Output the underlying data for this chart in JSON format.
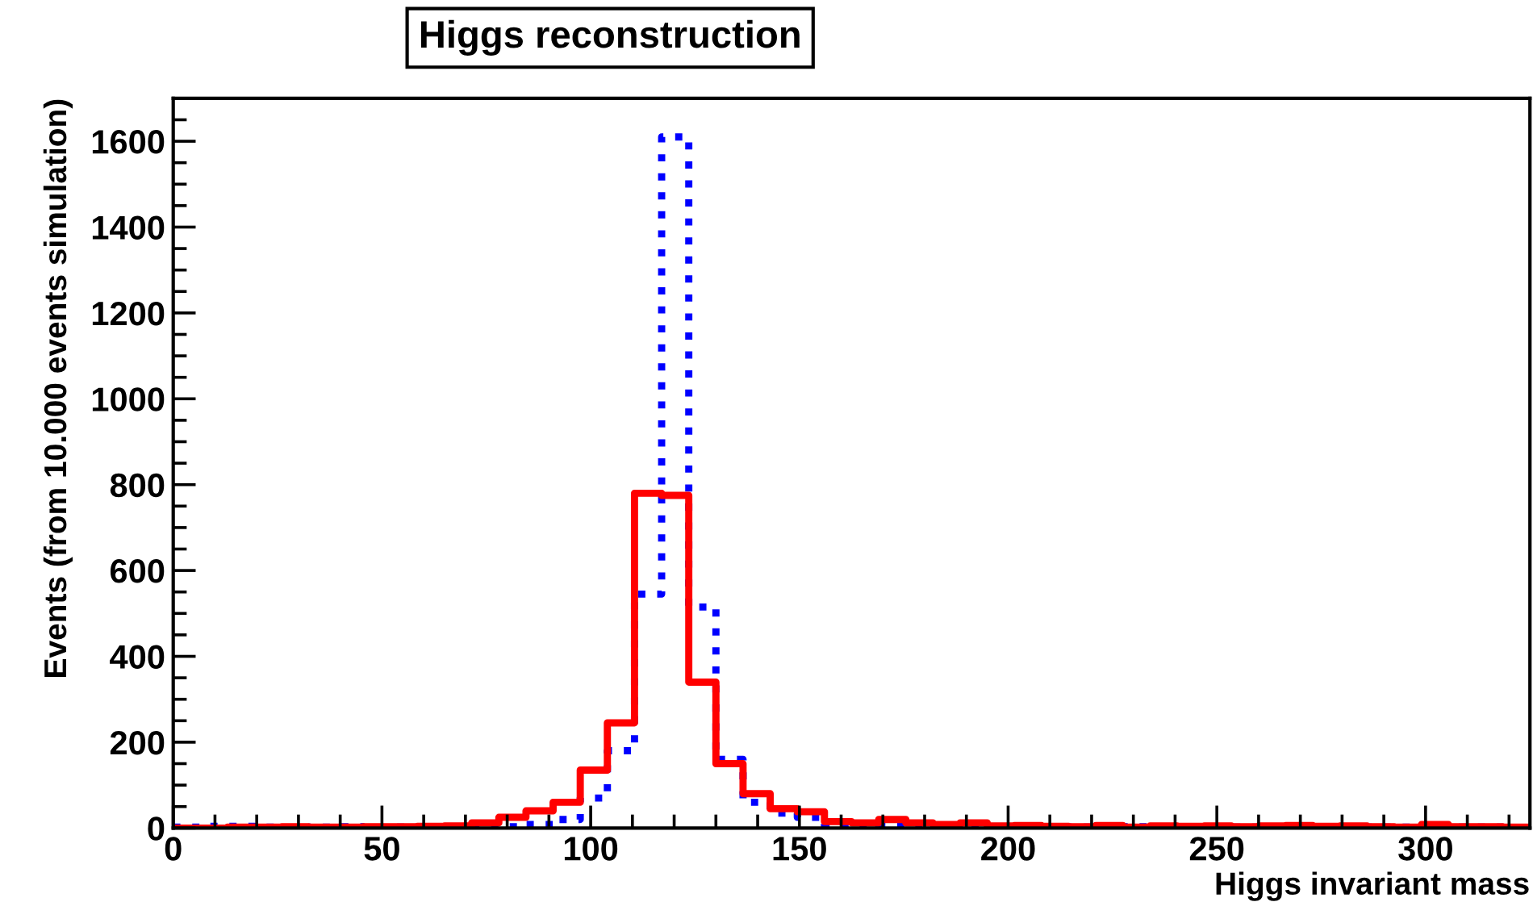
{
  "chart_data": {
    "type": "histogram",
    "title": "Higgs reconstruction",
    "xlabel": "Higgs invariant mass",
    "ylabel": "Events (from 10.000 events simulation)",
    "bins": [
      0,
      6.5,
      13,
      19.5,
      26,
      32.5,
      39,
      45.5,
      52,
      58.5,
      65,
      71.5,
      78,
      84.5,
      91,
      97.5,
      104,
      110.5,
      117,
      123.5,
      130,
      136.5,
      143,
      149.5,
      156,
      162.5,
      169,
      175.5,
      182,
      188.5,
      195,
      201.5,
      208,
      214.5,
      221,
      227.5,
      234,
      240.5,
      247,
      253.5,
      260,
      266.5,
      273,
      279.5,
      286,
      292.5,
      299,
      305.5,
      312,
      318.5,
      325
    ],
    "series": [
      {
        "color": "#0000ff",
        "line_style": "dotted",
        "values": [
          2,
          4,
          4,
          2,
          1,
          2,
          3,
          1,
          2,
          2,
          3,
          2,
          3,
          8,
          20,
          70,
          180,
          545,
          1610,
          515,
          160,
          60,
          35,
          25,
          5,
          3,
          4,
          2,
          3,
          4,
          3,
          2,
          3,
          2,
          1,
          3,
          2,
          2,
          1,
          2,
          3,
          2,
          2,
          1,
          2,
          2,
          3,
          2,
          2,
          1
        ]
      },
      {
        "color": "#ff0000",
        "line_style": "solid",
        "values": [
          0,
          0,
          2,
          2,
          3,
          2,
          2,
          3,
          3,
          4,
          5,
          12,
          25,
          40,
          60,
          135,
          245,
          780,
          775,
          340,
          150,
          80,
          45,
          38,
          15,
          12,
          20,
          12,
          8,
          12,
          5,
          6,
          4,
          3,
          6,
          2,
          5,
          4,
          5,
          3,
          5,
          6,
          4,
          5,
          3,
          2,
          8,
          3,
          3,
          2
        ]
      }
    ],
    "xlim": [
      0,
      325
    ],
    "ylim": [
      0,
      1700
    ],
    "xticks": [
      0,
      {
        "value": 10,
        "label": null
      },
      {
        "value": 20,
        "label": null
      },
      {
        "value": 30,
        "label": null
      },
      {
        "value": 40,
        "label": null
      },
      50,
      {
        "value": 60,
        "label": null
      },
      {
        "value": 70,
        "label": null
      },
      {
        "value": 80,
        "label": null
      },
      {
        "value": 90,
        "label": null
      },
      100,
      {
        "value": 110,
        "label": null
      },
      {
        "value": 120,
        "label": null
      },
      {
        "value": 130,
        "label": null
      },
      {
        "value": 140,
        "label": null
      },
      150,
      {
        "value": 160,
        "label": null
      },
      {
        "value": 170,
        "label": null
      },
      {
        "value": 180,
        "label": null
      },
      {
        "value": 190,
        "label": null
      },
      200,
      {
        "value": 210,
        "label": null
      },
      {
        "value": 220,
        "label": null
      },
      {
        "value": 230,
        "label": null
      },
      {
        "value": 240,
        "label": null
      },
      250,
      {
        "value": 260,
        "label": null
      },
      {
        "value": 270,
        "label": null
      },
      {
        "value": 280,
        "label": null
      },
      {
        "value": 290,
        "label": null
      },
      300,
      {
        "value": 310,
        "label": null
      },
      {
        "value": 320,
        "label": null
      }
    ],
    "yticks": [
      0,
      {
        "value": 50,
        "label": null
      },
      {
        "value": 100,
        "label": null
      },
      {
        "value": 150,
        "label": null
      },
      200,
      {
        "value": 250,
        "label": null
      },
      {
        "value": 300,
        "label": null
      },
      {
        "value": 350,
        "label": null
      },
      400,
      {
        "value": 450,
        "label": null
      },
      {
        "value": 500,
        "label": null
      },
      {
        "value": 550,
        "label": null
      },
      600,
      {
        "value": 650,
        "label": null
      },
      {
        "value": 700,
        "label": null
      },
      {
        "value": 750,
        "label": null
      },
      800,
      {
        "value": 850,
        "label": null
      },
      {
        "value": 900,
        "label": null
      },
      {
        "value": 950,
        "label": null
      },
      1000,
      {
        "value": 1050,
        "label": null
      },
      {
        "value": 1100,
        "label": null
      },
      {
        "value": 1150,
        "label": null
      },
      1200,
      {
        "value": 1250,
        "label": null
      },
      {
        "value": 1300,
        "label": null
      },
      {
        "value": 1350,
        "label": null
      },
      1400,
      {
        "value": 1450,
        "label": null
      },
      {
        "value": 1500,
        "label": null
      },
      {
        "value": 1550,
        "label": null
      },
      1600,
      {
        "value": 1650,
        "label": null
      }
    ],
    "grid": false,
    "legend": false
  }
}
